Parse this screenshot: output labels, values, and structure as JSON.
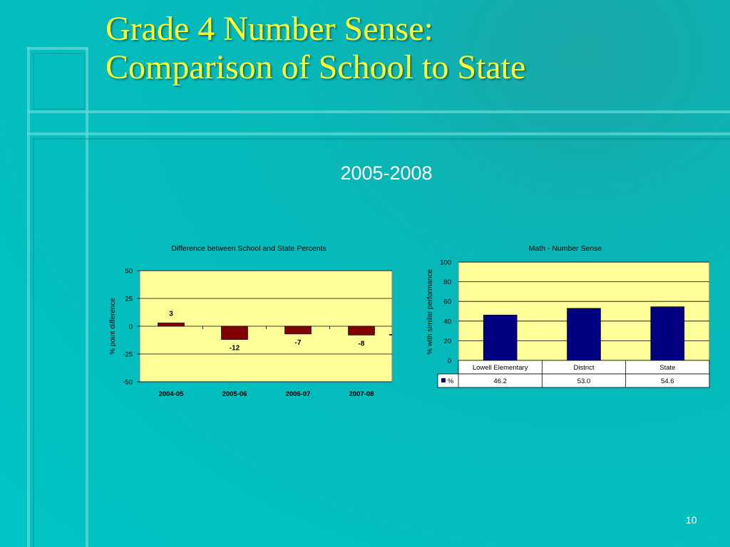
{
  "slide": {
    "title_line1": "Grade 4 Number Sense:",
    "title_line2": "Comparison of School to State",
    "subtitle": "2005-2008",
    "page_number": "10"
  },
  "colors": {
    "background": "#00c4c4",
    "title": "#ffff33",
    "plot_area": "#ffff99",
    "diff_bar": "#800000",
    "perf_bar": "#000080"
  },
  "chart_data": [
    {
      "type": "bar",
      "title": "Difference between School and State Percents",
      "ylabel": "% point difference",
      "xlabel": "",
      "categories": [
        "2004-05",
        "2005-06",
        "2006-07",
        "2007-08"
      ],
      "values": [
        3,
        -12,
        -7,
        -8
      ],
      "value_labels": [
        "3",
        "-12",
        "-7",
        "-8"
      ],
      "ylim": [
        -50,
        50
      ],
      "yticks": [
        "50",
        "25",
        "0",
        "-25",
        "-50"
      ],
      "grid": true
    },
    {
      "type": "bar",
      "title": "Math - Number Sense",
      "ylabel": "% with similar performance",
      "xlabel": "",
      "categories": [
        "Lowell Elementary",
        "District",
        "State"
      ],
      "series": [
        {
          "name": "%",
          "values": [
            46.2,
            53.0,
            54.6
          ],
          "value_labels": [
            "46.2",
            "53.0",
            "54.6"
          ]
        }
      ],
      "ylim": [
        0,
        100
      ],
      "yticks": [
        "100",
        "80",
        "60",
        "40",
        "20",
        "0"
      ],
      "grid": true,
      "data_table": true
    }
  ]
}
